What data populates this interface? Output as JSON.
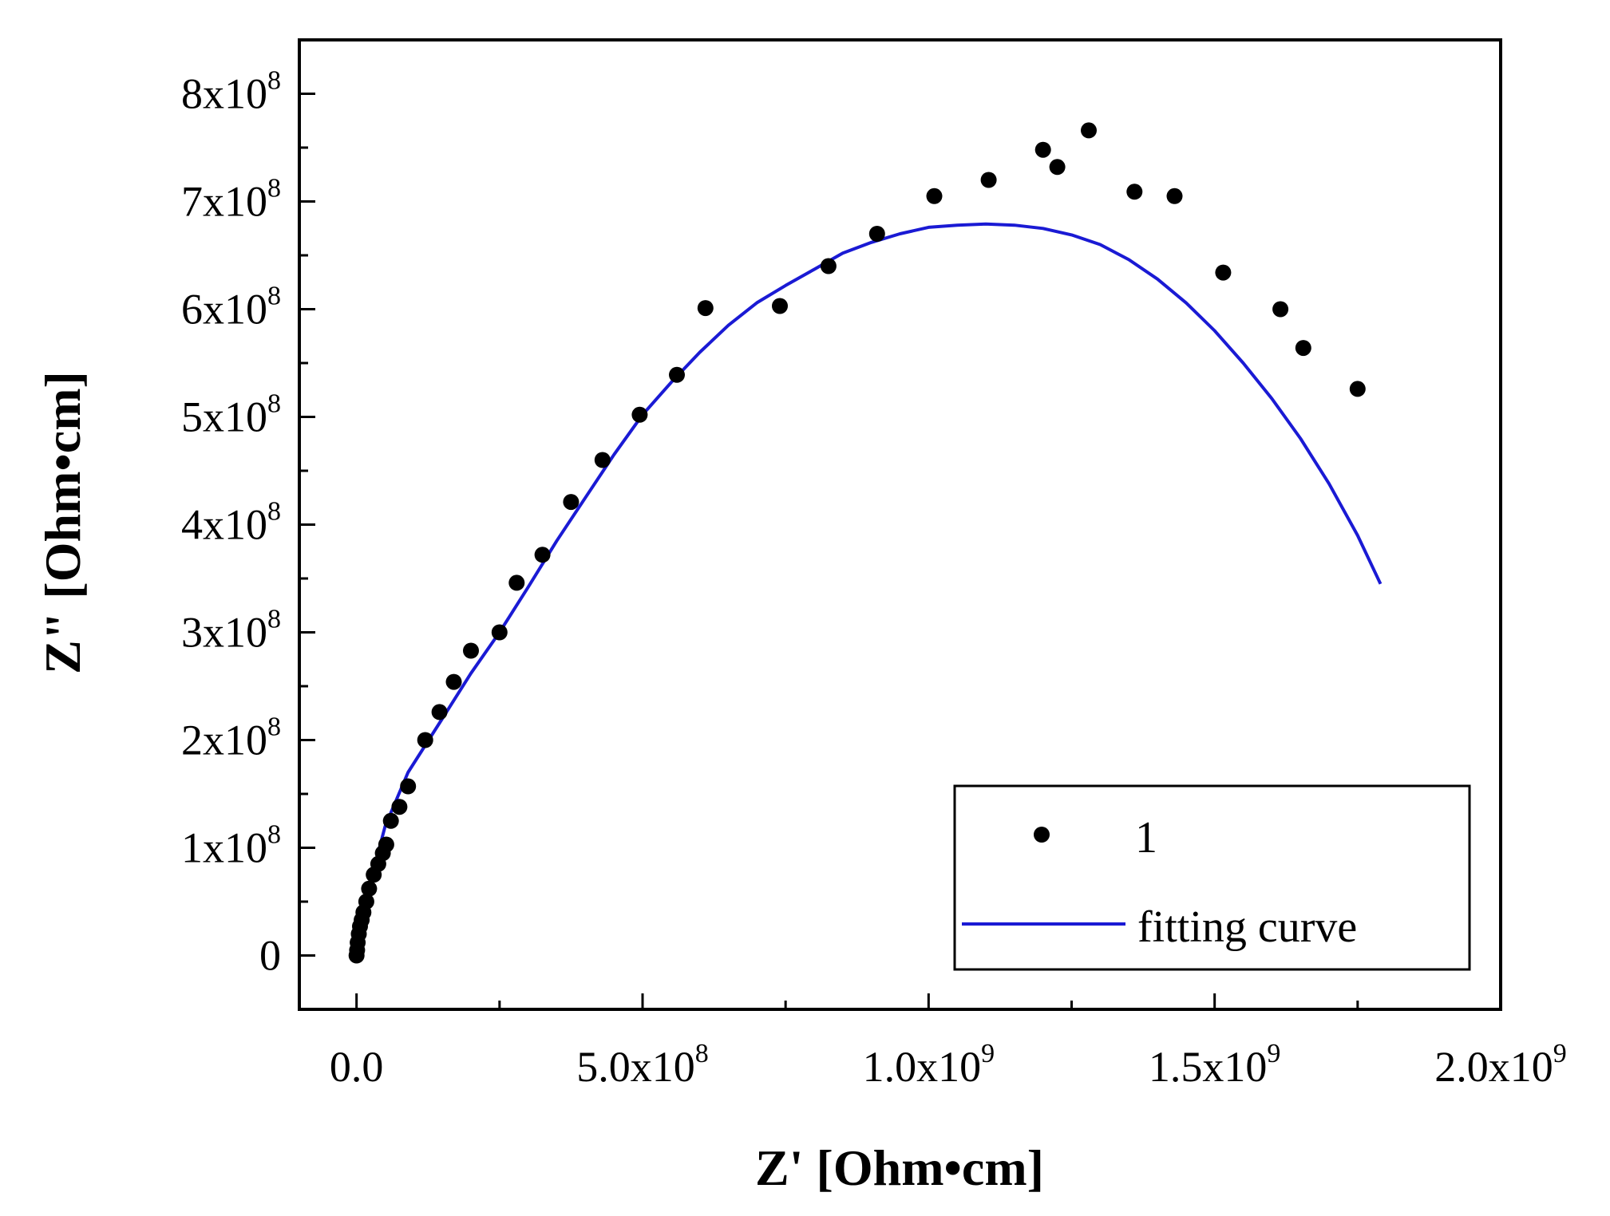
{
  "chart_data": {
    "type": "scatter",
    "title": "",
    "xlabel": "Z' [Ohm•cm]",
    "ylabel": "Z\" [Ohm•cm]",
    "xlim": [
      -100000000.0,
      2000000000.0
    ],
    "ylim": [
      -50000000.0,
      850000000.0
    ],
    "x_ticks": [
      {
        "value": 0,
        "mantissa": "0.0",
        "exp": ""
      },
      {
        "value": 500000000.0,
        "mantissa": "5.0x10",
        "exp": "8"
      },
      {
        "value": 1000000000.0,
        "mantissa": "1.0x10",
        "exp": "9"
      },
      {
        "value": 1500000000.0,
        "mantissa": "1.5x10",
        "exp": "9"
      },
      {
        "value": 2000000000.0,
        "mantissa": "2.0x10",
        "exp": "9"
      }
    ],
    "y_ticks": [
      {
        "value": 0,
        "mantissa": "0",
        "exp": ""
      },
      {
        "value": 100000000.0,
        "mantissa": "1x10",
        "exp": "8"
      },
      {
        "value": 200000000.0,
        "mantissa": "2x10",
        "exp": "8"
      },
      {
        "value": 300000000.0,
        "mantissa": "3x10",
        "exp": "8"
      },
      {
        "value": 400000000.0,
        "mantissa": "4x10",
        "exp": "8"
      },
      {
        "value": 500000000.0,
        "mantissa": "5x10",
        "exp": "8"
      },
      {
        "value": 600000000.0,
        "mantissa": "6x10",
        "exp": "8"
      },
      {
        "value": 700000000.0,
        "mantissa": "7x10",
        "exp": "8"
      },
      {
        "value": 800000000.0,
        "mantissa": "8x10",
        "exp": "8"
      }
    ],
    "x_minor_ticks": [
      250000000.0,
      750000000.0,
      1250000000.0,
      1750000000.0
    ],
    "y_minor_ticks": [
      50000000.0,
      150000000.0,
      250000000.0,
      350000000.0,
      450000000.0,
      550000000.0,
      650000000.0,
      750000000.0
    ],
    "grid": false,
    "legend_position": "bottom-right",
    "series": [
      {
        "name": "1",
        "kind": "scatter",
        "color": "#000000",
        "points": [
          [
            0.0,
            0.0
          ],
          [
            1000000.0,
            5000000.0
          ],
          [
            2000000.0,
            12000000.0
          ],
          [
            4000000.0,
            20000000.0
          ],
          [
            6000000.0,
            27000000.0
          ],
          [
            9000000.0,
            33000000.0
          ],
          [
            12000000.0,
            40000000.0
          ],
          [
            17000000.0,
            50000000.0
          ],
          [
            22000000.0,
            62000000.0
          ],
          [
            30000000.0,
            75000000.0
          ],
          [
            38000000.0,
            85000000.0
          ],
          [
            46000000.0,
            95000000.0
          ],
          [
            52000000.0,
            103000000.0
          ],
          [
            60000000.0,
            125000000.0
          ],
          [
            75000000.0,
            138000000.0
          ],
          [
            90000000.0,
            157000000.0
          ],
          [
            120000000.0,
            200000000.0
          ],
          [
            145000000.0,
            226000000.0
          ],
          [
            170000000.0,
            254000000.0
          ],
          [
            200000000.0,
            283000000.0
          ],
          [
            250000000.0,
            300000000.0
          ],
          [
            280000000.0,
            346000000.0
          ],
          [
            325000000.0,
            372000000.0
          ],
          [
            375000000.0,
            421000000.0
          ],
          [
            430000000.0,
            460000000.0
          ],
          [
            495000000.0,
            502000000.0
          ],
          [
            560000000.0,
            539000000.0
          ],
          [
            610000000.0,
            601000000.0
          ],
          [
            740000000.0,
            603000000.0
          ],
          [
            825000000.0,
            640000000.0
          ],
          [
            910000000.0,
            670000000.0
          ],
          [
            1010000000.0,
            705000000.0
          ],
          [
            1105000000.0,
            720000000.0
          ],
          [
            1200000000.0,
            748000000.0
          ],
          [
            1225000000.0,
            732000000.0
          ],
          [
            1280000000.0,
            766000000.0
          ],
          [
            1360000000.0,
            709000000.0
          ],
          [
            1430000000.0,
            705000000.0
          ],
          [
            1515000000.0,
            634000000.0
          ],
          [
            1615000000.0,
            600000000.0
          ],
          [
            1655000000.0,
            564000000.0
          ],
          [
            1750000000.0,
            526000000.0
          ]
        ]
      },
      {
        "name": "fitting curve",
        "kind": "line",
        "color": "#1a1ad4",
        "points": [
          [
            0.0,
            0.0
          ],
          [
            5000000.0,
            15000000.0
          ],
          [
            15000000.0,
            40000000.0
          ],
          [
            30000000.0,
            80000000.0
          ],
          [
            50000000.0,
            120000000.0
          ],
          [
            90000000.0,
            170000000.0
          ],
          [
            150000000.0,
            220000000.0
          ],
          [
            200000000.0,
            262000000.0
          ],
          [
            250000000.0,
            300000000.0
          ],
          [
            300000000.0,
            342000000.0
          ],
          [
            350000000.0,
            385000000.0
          ],
          [
            400000000.0,
            425000000.0
          ],
          [
            450000000.0,
            465000000.0
          ],
          [
            500000000.0,
            502000000.0
          ],
          [
            550000000.0,
            532000000.0
          ],
          [
            600000000.0,
            560000000.0
          ],
          [
            650000000.0,
            585000000.0
          ],
          [
            700000000.0,
            606000000.0
          ],
          [
            750000000.0,
            622000000.0
          ],
          [
            800000000.0,
            637000000.0
          ],
          [
            850000000.0,
            652000000.0
          ],
          [
            900000000.0,
            662000000.0
          ],
          [
            950000000.0,
            670000000.0
          ],
          [
            1000000000.0,
            676000000.0
          ],
          [
            1050000000.0,
            678000000.0
          ],
          [
            1100000000.0,
            679000000.0
          ],
          [
            1150000000.0,
            678000000.0
          ],
          [
            1200000000.0,
            675000000.0
          ],
          [
            1250000000.0,
            669000000.0
          ],
          [
            1300000000.0,
            660000000.0
          ],
          [
            1350000000.0,
            646000000.0
          ],
          [
            1400000000.0,
            628000000.0
          ],
          [
            1450000000.0,
            606000000.0
          ],
          [
            1500000000.0,
            580000000.0
          ],
          [
            1550000000.0,
            550000000.0
          ],
          [
            1600000000.0,
            517000000.0
          ],
          [
            1650000000.0,
            480000000.0
          ],
          [
            1700000000.0,
            438000000.0
          ],
          [
            1750000000.0,
            390000000.0
          ],
          [
            1790000000.0,
            345000000.0
          ]
        ]
      }
    ]
  }
}
